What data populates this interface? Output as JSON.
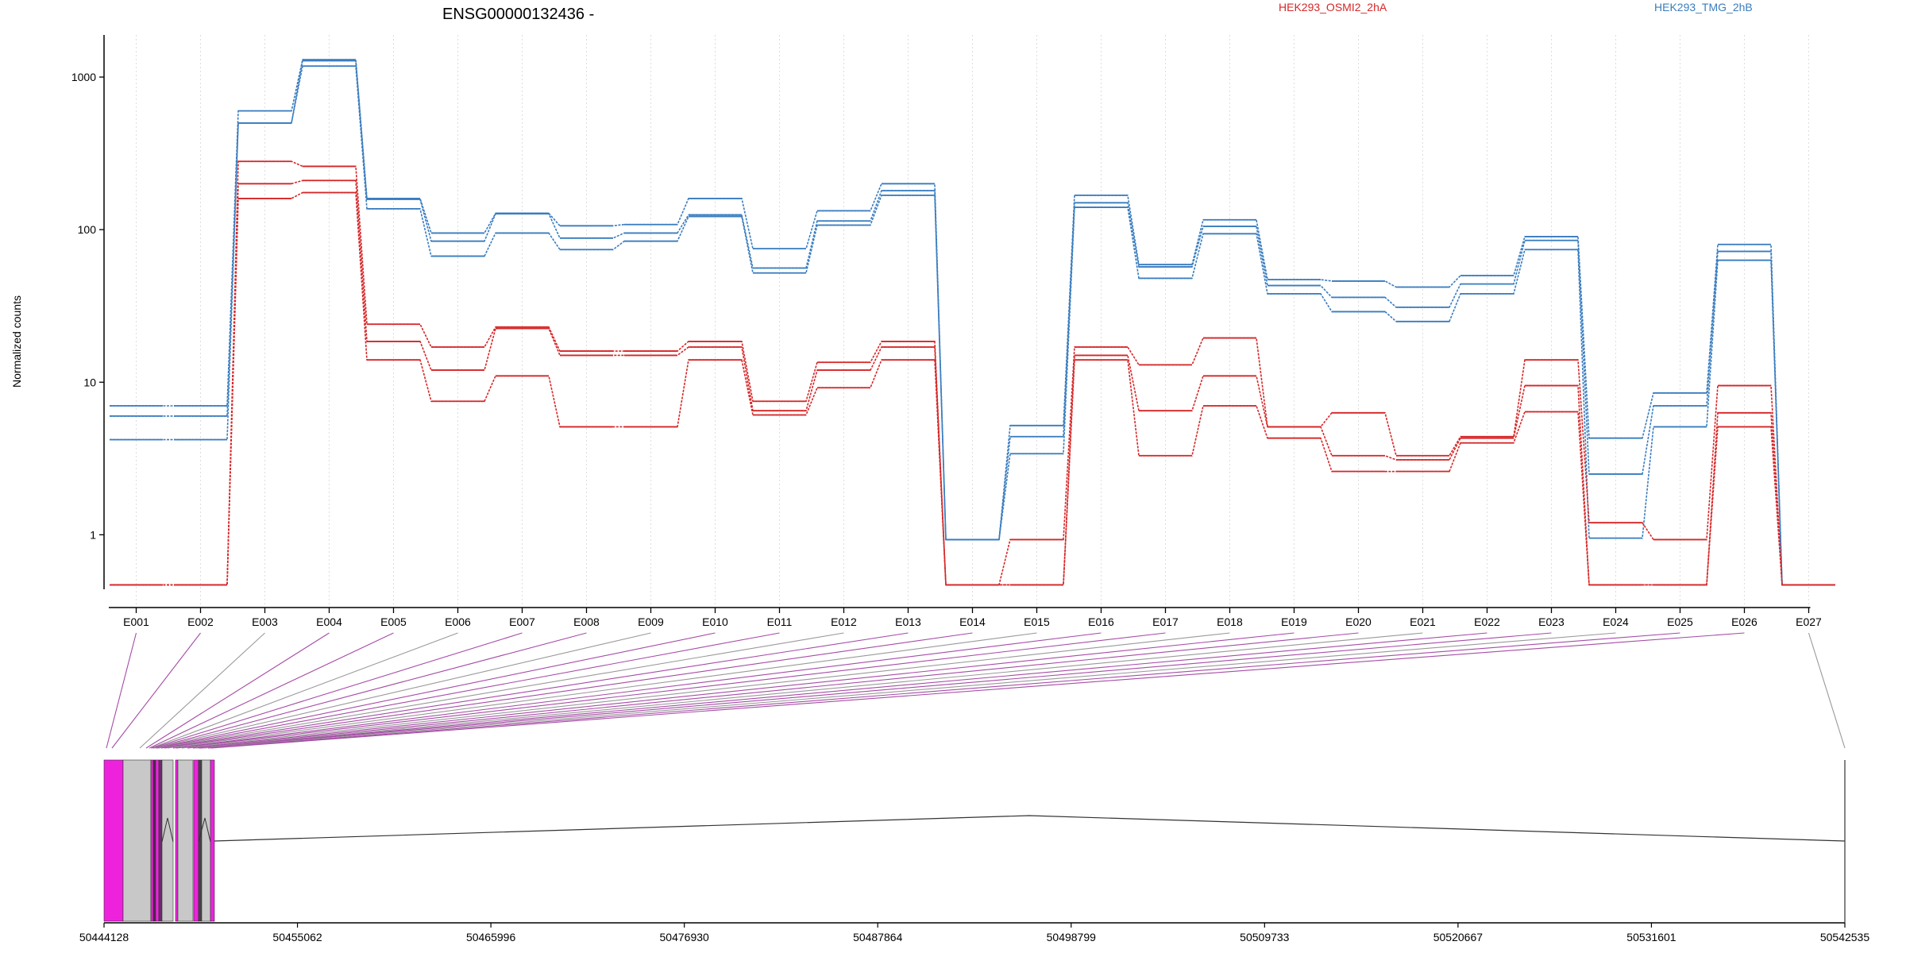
{
  "chart_data": {
    "type": "line",
    "title": "ENSG00000132436 -",
    "ylabel": "Normalized counts",
    "y_scale": "log",
    "ylim": [
      0.45,
      1800
    ],
    "yticks": [
      1,
      10,
      100,
      1000
    ],
    "ytick_labels": [
      "1",
      "10",
      "100",
      "1000"
    ],
    "grid": "vertical dotted lines at exon centers",
    "legend_placement": "top",
    "categories": [
      "E001",
      "E002",
      "E003",
      "E004",
      "E005",
      "E006",
      "E007",
      "E008",
      "E009",
      "E010",
      "E011",
      "E012",
      "E013",
      "E014",
      "E015",
      "E016",
      "E017",
      "E018",
      "E019",
      "E020",
      "E021",
      "E022",
      "E023",
      "E024",
      "E025",
      "E026",
      "E027"
    ],
    "groups": [
      {
        "name": "HEK293_OSMI2_2hA",
        "color": "#d62728"
      },
      {
        "name": "HEK293_TMG_2hB",
        "color": "#3a7dbf"
      }
    ],
    "series": [
      {
        "group": "HEK293_TMG_2hB",
        "values": [
          7.0,
          7.0,
          600,
          1300,
          160,
          95,
          128,
          106,
          108,
          160,
          75,
          133,
          200,
          0.93,
          5.2,
          168,
          59,
          116,
          47,
          46,
          42,
          50,
          90,
          4.3,
          8.5,
          80,
          0.47
        ]
      },
      {
        "group": "HEK293_TMG_2hB",
        "values": [
          6.0,
          6.0,
          500,
          1280,
          158,
          84,
          127,
          88,
          95,
          125,
          56,
          114,
          180,
          0.93,
          4.4,
          150,
          57,
          105,
          43,
          36,
          31,
          44,
          85,
          2.5,
          7.0,
          72,
          0.47
        ]
      },
      {
        "group": "HEK293_TMG_2hB",
        "values": [
          4.2,
          4.2,
          500,
          1180,
          137,
          67,
          95,
          74,
          84,
          122,
          52,
          107,
          168,
          0.93,
          3.4,
          140,
          48,
          94,
          38,
          29,
          25,
          38,
          74,
          0.95,
          5.1,
          63,
          0.47
        ]
      },
      {
        "group": "HEK293_OSMI2_2hA",
        "values": [
          0.47,
          0.47,
          280,
          260,
          24,
          17,
          23,
          16,
          16,
          18.5,
          7.5,
          13.5,
          18.5,
          0.47,
          0.93,
          17,
          13,
          19.5,
          5.1,
          6.3,
          3.3,
          4.4,
          14,
          1.2,
          0.93,
          9.5,
          0.47
        ]
      },
      {
        "group": "HEK293_OSMI2_2hA",
        "values": [
          0.47,
          0.47,
          200,
          210,
          18.5,
          12,
          22.5,
          15,
          15,
          17,
          6.5,
          12,
          17,
          0.47,
          0.47,
          15,
          6.5,
          11,
          5.1,
          3.3,
          3.1,
          4.3,
          9.5,
          0.47,
          0.47,
          6.3,
          0.47
        ]
      },
      {
        "group": "HEK293_OSMI2_2hA",
        "values": [
          0.47,
          0.47,
          160,
          175,
          14,
          7.5,
          11,
          5.1,
          5.1,
          14,
          6.1,
          9.2,
          14,
          0.47,
          0.47,
          14,
          3.3,
          7.0,
          4.3,
          2.6,
          2.6,
          4.0,
          6.4,
          0.47,
          0.47,
          5.1,
          0.47
        ]
      }
    ],
    "gene_model": {
      "coordinate_ticks": [
        "50444128",
        "50455062",
        "50465996",
        "50476930",
        "50487864",
        "50498799",
        "50509733",
        "50520667",
        "50531601",
        "50542535"
      ],
      "range": [
        50444128,
        50542535
      ],
      "exon_highlight_color": "#ee22dd",
      "exon_color": "#c8c8c8",
      "connector_colors": [
        "#a64ca6",
        "#999999"
      ]
    }
  }
}
